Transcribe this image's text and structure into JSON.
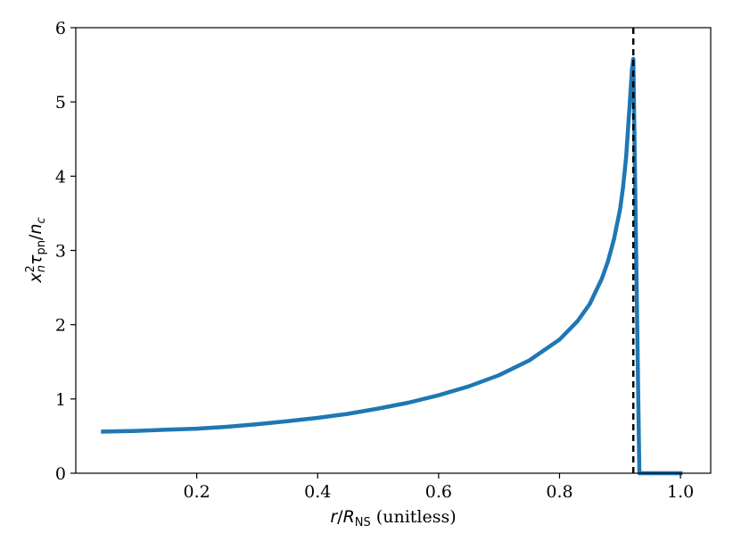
{
  "chart_data": {
    "type": "line",
    "title": "",
    "xlabel": {
      "r": "r",
      "slash": "/",
      "R": "R",
      "sub": "NS",
      "unit": " (unitless)"
    },
    "ylabel": {
      "x": "x",
      "xsub": "n",
      "xsup": "2",
      "tau": "τ",
      "tausub": "pn",
      "slash": "/",
      "n": "n",
      "nsub": "c"
    },
    "xlim": [
      0.0,
      1.05
    ],
    "ylim": [
      0,
      6
    ],
    "xticks": [
      0.2,
      0.4,
      0.6,
      0.8,
      1.0
    ],
    "xtick_labels": [
      "0.2",
      "0.4",
      "0.6",
      "0.8",
      "1.0"
    ],
    "yticks": [
      0,
      1,
      2,
      3,
      4,
      5,
      6
    ],
    "ytick_labels": [
      "0",
      "1",
      "2",
      "3",
      "4",
      "5",
      "6"
    ],
    "grid": false,
    "vline": {
      "x": 0.922,
      "style": "dashed",
      "color": "#000000"
    },
    "series": [
      {
        "color": "#1f77b4",
        "x": [
          0.045,
          0.1,
          0.15,
          0.2,
          0.25,
          0.3,
          0.35,
          0.4,
          0.45,
          0.5,
          0.55,
          0.6,
          0.65,
          0.7,
          0.75,
          0.8,
          0.83,
          0.85,
          0.87,
          0.88,
          0.89,
          0.9,
          0.905,
          0.91,
          0.915,
          0.92,
          0.922,
          0.932,
          0.94,
          0.96,
          0.98,
          1.0
        ],
        "y": [
          0.56,
          0.57,
          0.585,
          0.6,
          0.625,
          0.66,
          0.7,
          0.745,
          0.8,
          0.87,
          0.95,
          1.05,
          1.17,
          1.32,
          1.52,
          1.8,
          2.05,
          2.28,
          2.62,
          2.85,
          3.15,
          3.55,
          3.85,
          4.25,
          4.85,
          5.45,
          5.58,
          0.0,
          0.0,
          0.0,
          0.0,
          0.0
        ]
      }
    ]
  }
}
